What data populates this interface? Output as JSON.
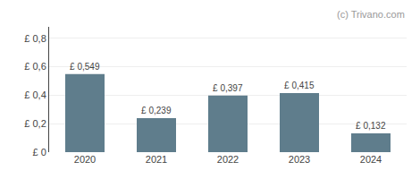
{
  "chart_data": {
    "type": "bar",
    "categories": [
      "2020",
      "2021",
      "2022",
      "2023",
      "2024"
    ],
    "values": [
      0.549,
      0.239,
      0.397,
      0.415,
      0.132
    ],
    "value_labels": [
      "£ 0,549",
      "£ 0,239",
      "£ 0,397",
      "£ 0,415",
      "£ 0,132"
    ],
    "data_labels": true,
    "color": "#5f7d8c",
    "ylim": [
      0,
      0.88
    ],
    "yticks": [
      {
        "value": 0,
        "label": "£ 0"
      },
      {
        "value": 0.2,
        "label": "£ 0,2"
      },
      {
        "value": 0.4,
        "label": "£ 0,4"
      },
      {
        "value": 0.6,
        "label": "£ 0,6"
      },
      {
        "value": 0.8,
        "label": "£ 0,8"
      }
    ],
    "grid": true,
    "annotations": [
      "(c) Trivano.com"
    ]
  }
}
